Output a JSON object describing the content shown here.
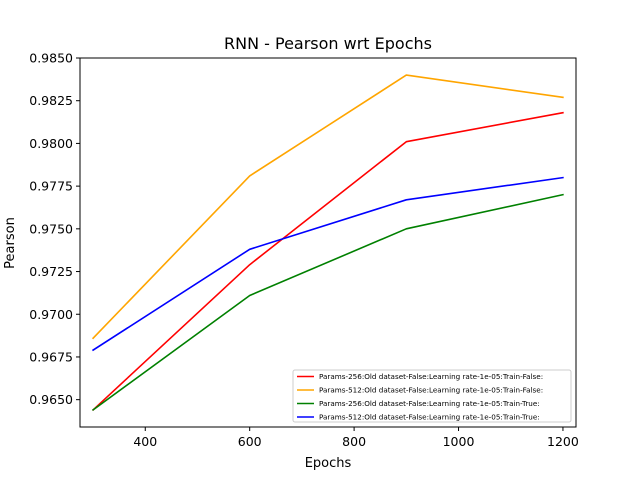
{
  "chart_data": {
    "type": "line",
    "title": "RNN - Pearson wrt Epochs",
    "xlabel": "Epochs",
    "ylabel": "Pearson",
    "xlim": [
      275,
      1225
    ],
    "ylim": [
      0.9634,
      0.985
    ],
    "xticks": [
      400,
      600,
      800,
      1000,
      1200
    ],
    "xtick_labels": [
      "400",
      "600",
      "800",
      "1000",
      "1200"
    ],
    "yticks": [
      0.965,
      0.9675,
      0.97,
      0.9725,
      0.975,
      0.9775,
      0.98,
      0.9825,
      0.985
    ],
    "ytick_labels": [
      "0.9650",
      "0.9675",
      "0.9700",
      "0.9725",
      "0.9750",
      "0.9775",
      "0.9800",
      "0.9825",
      "0.9850"
    ],
    "grid": false,
    "legend_position": "bottom-right",
    "x": [
      300,
      600,
      900,
      1200
    ],
    "series": [
      {
        "name": "Params-256:Old dataset-False:Learning rate-1e-05:Train-False:",
        "color": "#ff0000",
        "values": [
          0.9644,
          0.9729,
          0.9801,
          0.9818
        ]
      },
      {
        "name": "Params-512:Old dataset-False:Learning rate-1e-05:Train-False:",
        "color": "#ffa500",
        "values": [
          0.9686,
          0.9781,
          0.984,
          0.9827
        ]
      },
      {
        "name": "Params-256:Old dataset-False:Learning rate-1e-05:Train-True:",
        "color": "#008000",
        "values": [
          0.9644,
          0.9711,
          0.975,
          0.977
        ]
      },
      {
        "name": "Params-512:Old dataset-False:Learning rate-1e-05:Train-True:",
        "color": "#0000ff",
        "values": [
          0.9679,
          0.9738,
          0.9767,
          0.978
        ]
      }
    ]
  }
}
